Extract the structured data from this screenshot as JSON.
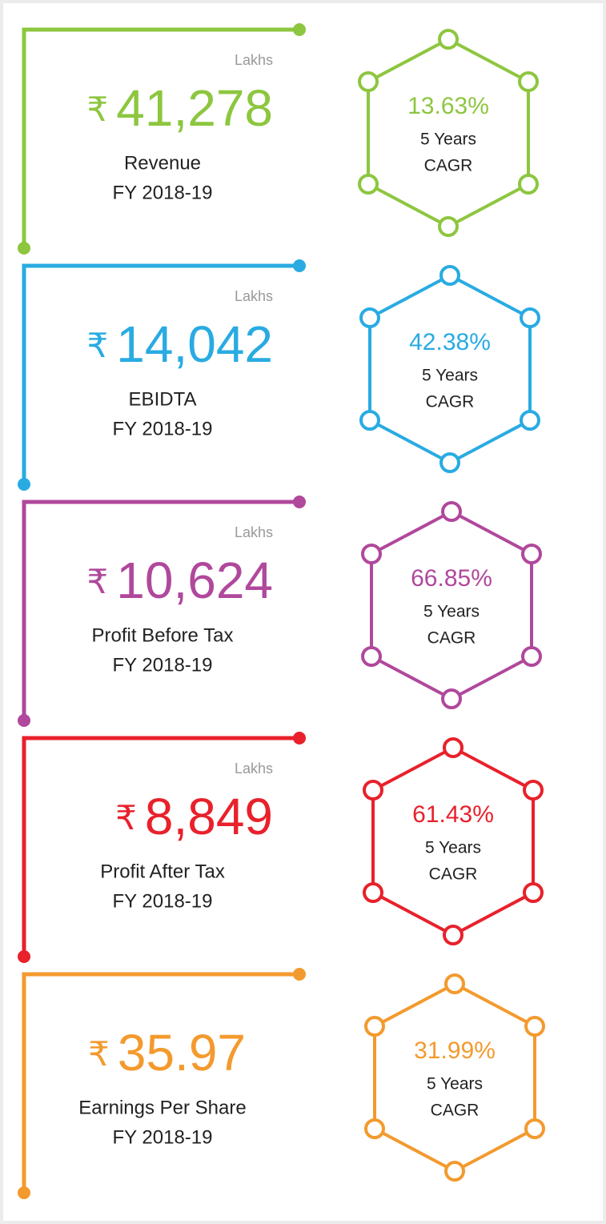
{
  "items": [
    {
      "unit": "Lakhs",
      "currency": "₹",
      "amount": "41,278",
      "label": "Revenue",
      "period": "FY 2018-19",
      "cagr": "13.63%",
      "cagr_period": "5 Years",
      "cagr_label": "CAGR",
      "color": "#8dc63f"
    },
    {
      "unit": "Lakhs",
      "currency": "₹",
      "amount": "14,042",
      "label": "EBIDTA",
      "period": "FY 2018-19",
      "cagr": "42.38%",
      "cagr_period": "5 Years",
      "cagr_label": "CAGR",
      "color": "#29abe2"
    },
    {
      "unit": "Lakhs",
      "currency": "₹",
      "amount": "10,624",
      "label": "Profit Before Tax",
      "period": "FY 2018-19",
      "cagr": "66.85%",
      "cagr_period": "5 Years",
      "cagr_label": "CAGR",
      "color": "#b0489c"
    },
    {
      "unit": "Lakhs",
      "currency": "₹",
      "amount": "8,849",
      "label": "Profit After Tax",
      "period": "FY 2018-19",
      "cagr": "61.43%",
      "cagr_period": "5 Years",
      "cagr_label": "CAGR",
      "color": "#e8212b"
    },
    {
      "currency": "₹",
      "amount": "35.97",
      "label": "Earnings Per Share",
      "period": "FY 2018-19",
      "cagr": "31.99%",
      "cagr_period": "5 Years",
      "cagr_label": "CAGR",
      "color": "#f39a2e"
    }
  ]
}
